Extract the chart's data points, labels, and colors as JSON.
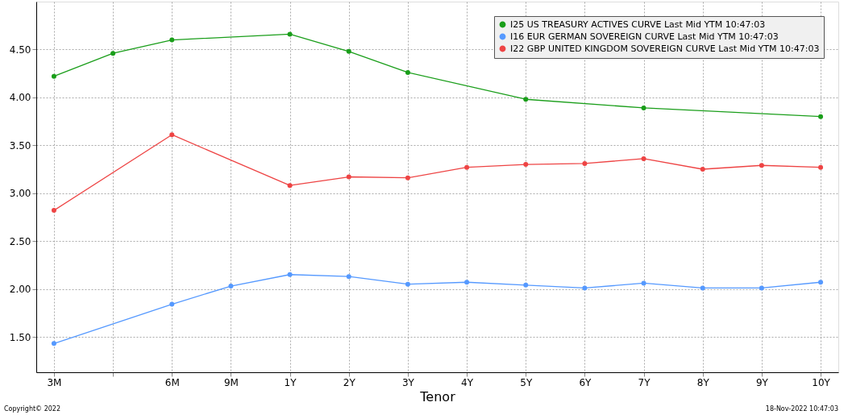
{
  "chart_data": {
    "type": "line",
    "xlabel": "Tenor",
    "categories": [
      "3M",
      null,
      "6M",
      "9M",
      "1Y",
      "2Y",
      "3Y",
      "4Y",
      "5Y",
      "6Y",
      "7Y",
      "8Y",
      "9Y",
      "10Y"
    ],
    "ylim": [
      1.13,
      5.0
    ],
    "yticks": [
      {
        "value": 1.5,
        "label": "1.50"
      },
      {
        "value": 2,
        "label": "2.00"
      },
      {
        "value": 2.5,
        "label": "2.50"
      },
      {
        "value": 3,
        "label": "3.00"
      },
      {
        "value": 3.5,
        "label": "3.50"
      },
      {
        "value": 4,
        "label": "4.00"
      },
      {
        "value": 4.5,
        "label": "4.50"
      }
    ],
    "series": [
      {
        "name": "I25 US TREASURY ACTIVES CURVE Last Mid YTM 10:47:03",
        "color": "#1a9e1a",
        "values": [
          4.22,
          4.46,
          4.6,
          null,
          4.66,
          4.48,
          4.26,
          null,
          3.98,
          null,
          3.89,
          null,
          null,
          3.8
        ]
      },
      {
        "name": "I16 EUR GERMAN SOVEREIGN CURVE Last Mid YTM 10:47:03",
        "color": "#5599ff",
        "values": [
          1.43,
          null,
          1.84,
          2.03,
          2.15,
          2.13,
          2.05,
          2.07,
          2.04,
          2.01,
          2.06,
          2.01,
          2.01,
          2.07
        ]
      },
      {
        "name": "I22 GBP UNITED KINGDOM SOVEREIGN CURVE Last Mid YTM 10:47:03",
        "color": "#ee4444",
        "values": [
          2.82,
          null,
          3.61,
          null,
          3.08,
          3.17,
          3.16,
          3.27,
          3.3,
          3.31,
          3.36,
          3.25,
          3.29,
          3.27
        ]
      }
    ],
    "marker": "circle",
    "line_style": "solid",
    "grid": true,
    "legend": "top right",
    "annotations": [
      "Copyright© 2022",
      "18-Nov-2022 10:47:03"
    ]
  }
}
